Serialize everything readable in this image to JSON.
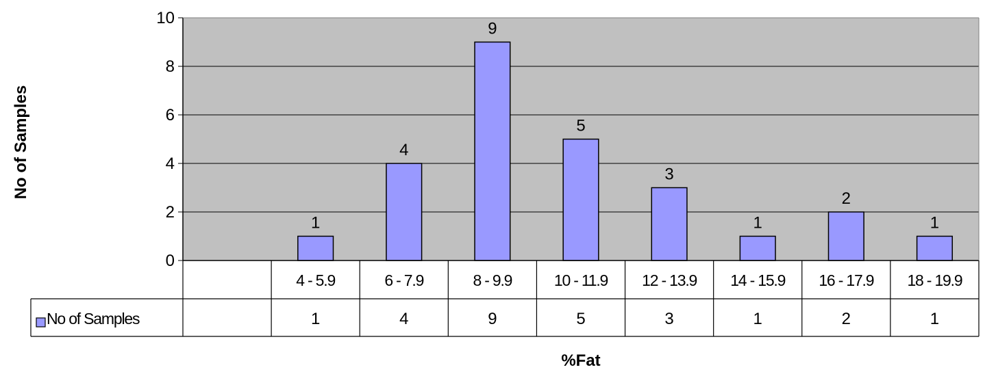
{
  "chart_data": {
    "type": "bar",
    "categories": [
      "",
      "4 - 5.9",
      "6 - 7.9",
      "8 - 9.9",
      "10 - 11.9",
      "12 - 13.9",
      "14 - 15.9",
      "16 - 17.9",
      "18 - 19.9"
    ],
    "series": [
      {
        "name": "No of Samples",
        "values": [
          null,
          1,
          4,
          9,
          5,
          3,
          1,
          2,
          1
        ]
      }
    ],
    "data_labels": [
      "",
      "1",
      "4",
      "9",
      "5",
      "3",
      "1",
      "2",
      "1"
    ],
    "table_values": [
      "",
      "1",
      "4",
      "9",
      "5",
      "3",
      "1",
      "2",
      "1"
    ],
    "yticks": [
      0,
      2,
      4,
      6,
      8,
      10
    ],
    "ylim": [
      0,
      10
    ],
    "xlabel": "%Fat",
    "ylabel": "No of Samples",
    "grid": true,
    "legend": "data-table",
    "colors": {
      "bar": "#9999ff",
      "plot_bg": "#c0c0c0",
      "grid": "#000000"
    }
  }
}
